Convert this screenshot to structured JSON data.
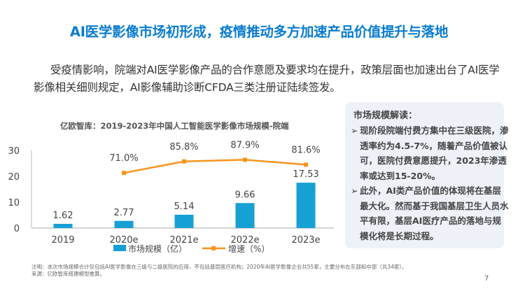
{
  "title": "AI医学影像市场初形成，疫情推动多方加速产品价值提升与落地",
  "intro": "受疫情影响，院端对AI医学影像产品的合作意愿及要求均在提升，政策层面也加速出台了AI医学影像相关细则规定，AI影像辅助诊断CFDA三类注册证陆续签发。",
  "sidebar": {
    "title": "市场规模解读：",
    "bullets": [
      "现阶段院端付费方集中在三级医院，渗透率约为4.5-7%，随着产品价值被认可，医院付费意愿提升，2023年渗透率或达到15-20%。",
      "此外，AI类产品价值的体现将在基层最大化。然而基于我国基层卫生人员水平有限，基层AI医疗产品的落地与规模化将是长期过程。"
    ],
    "bullet_icon": "arrow-right-icon"
  },
  "footnote": {
    "note": "注明：本次市场规模合计仅包括AI医学影像在三级与二级医院的应用，不包括基层医疗机构；2020年AI医学影像企业共55家，主要分布在东部和中部（共34家）。",
    "source": "来源：亿欧智库搭建模型推算。"
  },
  "page_number": "7",
  "chart_data": {
    "type": "bar",
    "title": "亿欧智库：2019-2023年中国人工智能医学影像市场规模-院端",
    "categories": [
      "2019",
      "2020e",
      "2021e",
      "2022e",
      "2023e"
    ],
    "ylim": [
      0,
      30
    ],
    "yticks": [
      "0",
      "10",
      "20",
      "30"
    ],
    "y2lim": [
      0,
      100
    ],
    "legend_position": "bottom",
    "series": [
      {
        "name": "市场规模（亿）",
        "type": "bar",
        "values": [
          1.62,
          2.77,
          5.14,
          9.66,
          17.53
        ],
        "labels": [
          "1.62",
          "2.77",
          "5.14",
          "9.66",
          "17.53"
        ],
        "color": "#17a0d4"
      },
      {
        "name": "增速（%）",
        "type": "line",
        "axis": "secondary",
        "values": [
          null,
          71.0,
          85.8,
          87.9,
          81.6
        ],
        "labels": [
          "",
          "71.0%",
          "85.8%",
          "87.9%",
          "81.6%"
        ],
        "color": "#f7941d"
      }
    ]
  }
}
